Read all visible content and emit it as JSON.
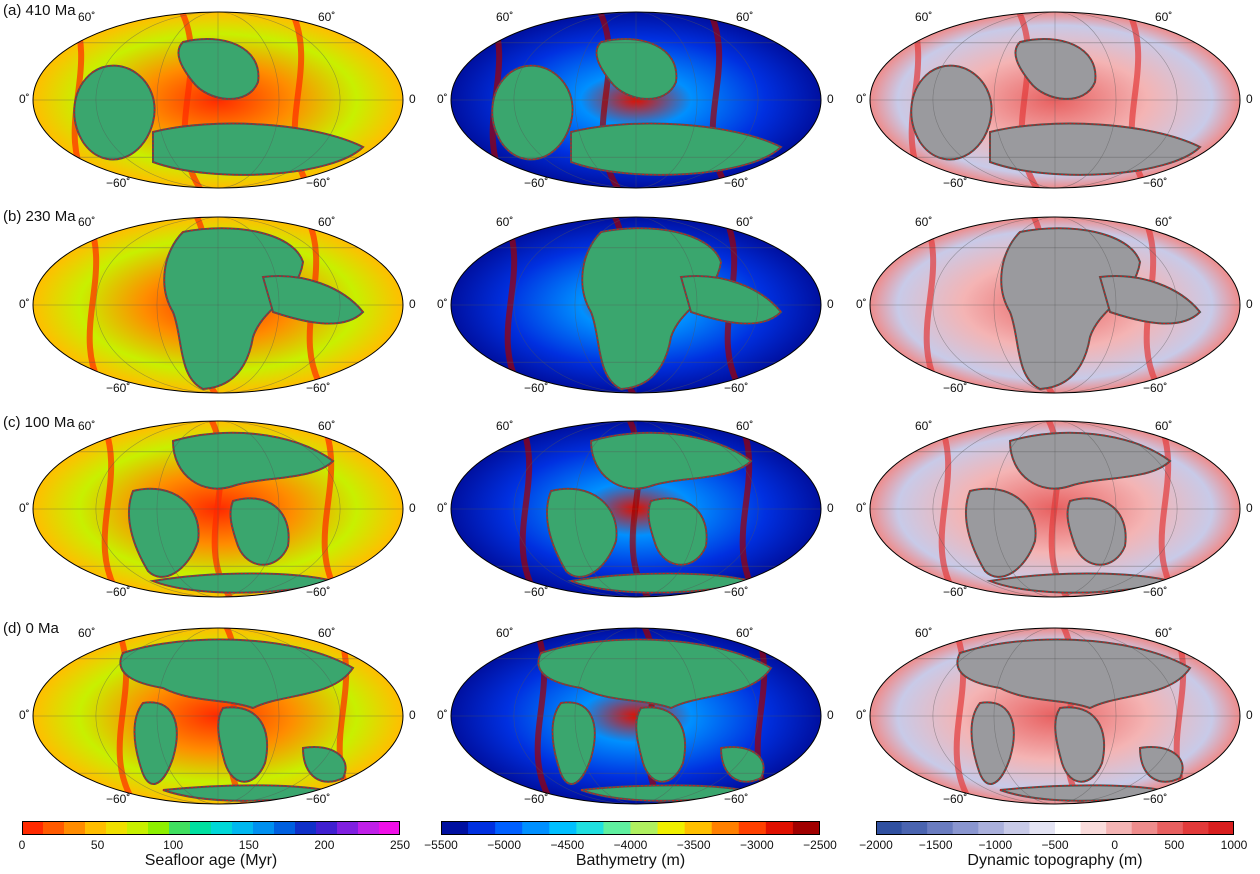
{
  "rows": [
    {
      "label": "(a) 410 Ma"
    },
    {
      "label": "(b) 230 Ma"
    },
    {
      "label": "(c) 100 Ma"
    },
    {
      "label": "(d) 0 Ma"
    }
  ],
  "columns": [
    {
      "name": "seafloor-age",
      "colorbar": {
        "title": "Seafloor age (Myr)",
        "ticks": [
          "0",
          "50",
          "100",
          "150",
          "200",
          "250"
        ],
        "colors": [
          "#ff2a00",
          "#ff5a00",
          "#ff8c00",
          "#ffbe00",
          "#f0e000",
          "#c8f000",
          "#8ef000",
          "#40e060",
          "#00e0a0",
          "#00d8d8",
          "#00b8f0",
          "#0090f0",
          "#0060e0",
          "#1030c8",
          "#4020d0",
          "#8020e0",
          "#c020e8",
          "#f010e8"
        ]
      }
    },
    {
      "name": "bathymetry",
      "colorbar": {
        "title": "Bathymetry (m)",
        "ticks": [
          "−5500",
          "−5000",
          "−4500",
          "−4000",
          "−3500",
          "−3000",
          "−2500"
        ],
        "colors": [
          "#0010a0",
          "#0030e0",
          "#0060ff",
          "#0090ff",
          "#00c0ff",
          "#20e0e0",
          "#60f0a0",
          "#b0f060",
          "#f0f000",
          "#ffc000",
          "#ff8000",
          "#ff4000",
          "#e01000",
          "#a00000"
        ]
      }
    },
    {
      "name": "dynamic-topography",
      "colorbar": {
        "title": "Dynamic topography (m)",
        "ticks": [
          "−2000",
          "−1500",
          "−1000",
          "−500",
          "0",
          "500",
          "1000"
        ],
        "colors": [
          "#3050a0",
          "#4a64b0",
          "#6a7cc0",
          "#8a96d0",
          "#aab0dc",
          "#c8cae8",
          "#e4e4f4",
          "#ffffff",
          "#fadcdc",
          "#f4b4b4",
          "#ee8c8c",
          "#e86060",
          "#e23a3a",
          "#d81e1e"
        ]
      }
    }
  ],
  "lat_labels": [
    "60˚",
    "0˚",
    "−60˚",
    "60˚",
    "0",
    "−60˚"
  ],
  "colors": {
    "continent": "#3aa66e",
    "continent_dark": "#4d5552",
    "plate_boundary": "#d21a1a",
    "grid": "#555555"
  }
}
